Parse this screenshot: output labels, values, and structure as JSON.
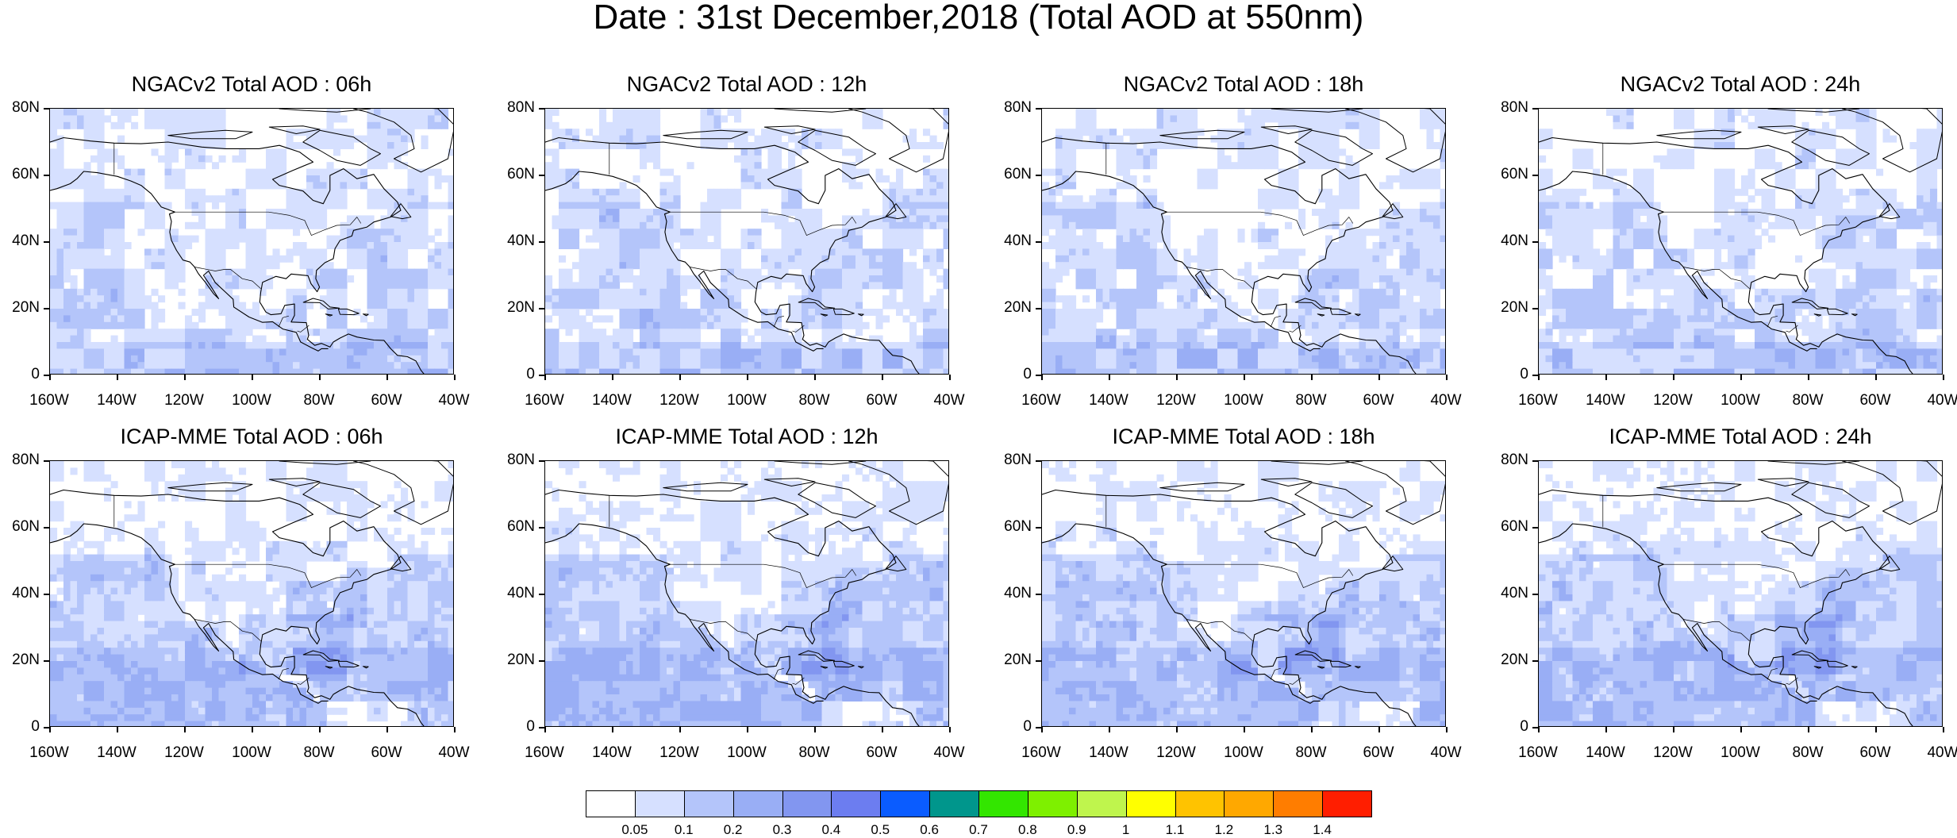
{
  "title": "Date : 31st December,2018 (Total AOD at 550nm)",
  "lat_labels": [
    "80N",
    "60N",
    "40N",
    "20N",
    "0"
  ],
  "lon_labels": [
    "160W",
    "140W",
    "120W",
    "100W",
    "80W",
    "60W",
    "40W"
  ],
  "panels": [
    {
      "title": "NGACv2 Total AOD : 06h",
      "model": "NGACv2",
      "hour": "06h"
    },
    {
      "title": "NGACv2 Total AOD : 12h",
      "model": "NGACv2",
      "hour": "12h"
    },
    {
      "title": "NGACv2 Total AOD : 18h",
      "model": "NGACv2",
      "hour": "18h"
    },
    {
      "title": "NGACv2 Total AOD : 24h",
      "model": "NGACv2",
      "hour": "24h"
    },
    {
      "title": "ICAP-MME Total AOD : 06h",
      "model": "ICAP-MME",
      "hour": "06h"
    },
    {
      "title": "ICAP-MME Total AOD : 12h",
      "model": "ICAP-MME",
      "hour": "12h"
    },
    {
      "title": "ICAP-MME Total AOD : 18h",
      "model": "ICAP-MME",
      "hour": "18h"
    },
    {
      "title": "ICAP-MME Total AOD : 24h",
      "model": "ICAP-MME",
      "hour": "24h"
    }
  ],
  "colorbar": {
    "labels": [
      "0.05",
      "0.1",
      "0.2",
      "0.3",
      "0.4",
      "0.5",
      "0.6",
      "0.7",
      "0.8",
      "0.9",
      "1",
      "1.1",
      "1.2",
      "1.3",
      "1.4"
    ],
    "colors": [
      "#ffffff",
      "#d6e0ff",
      "#b4c5fa",
      "#99aef5",
      "#8296f0",
      "#6c7df0",
      "#0a5cff",
      "#00968c",
      "#33e600",
      "#7ef000",
      "#bff54d",
      "#ffff00",
      "#ffc300",
      "#ffa800",
      "#ff7d00",
      "#ff1e00"
    ]
  }
}
